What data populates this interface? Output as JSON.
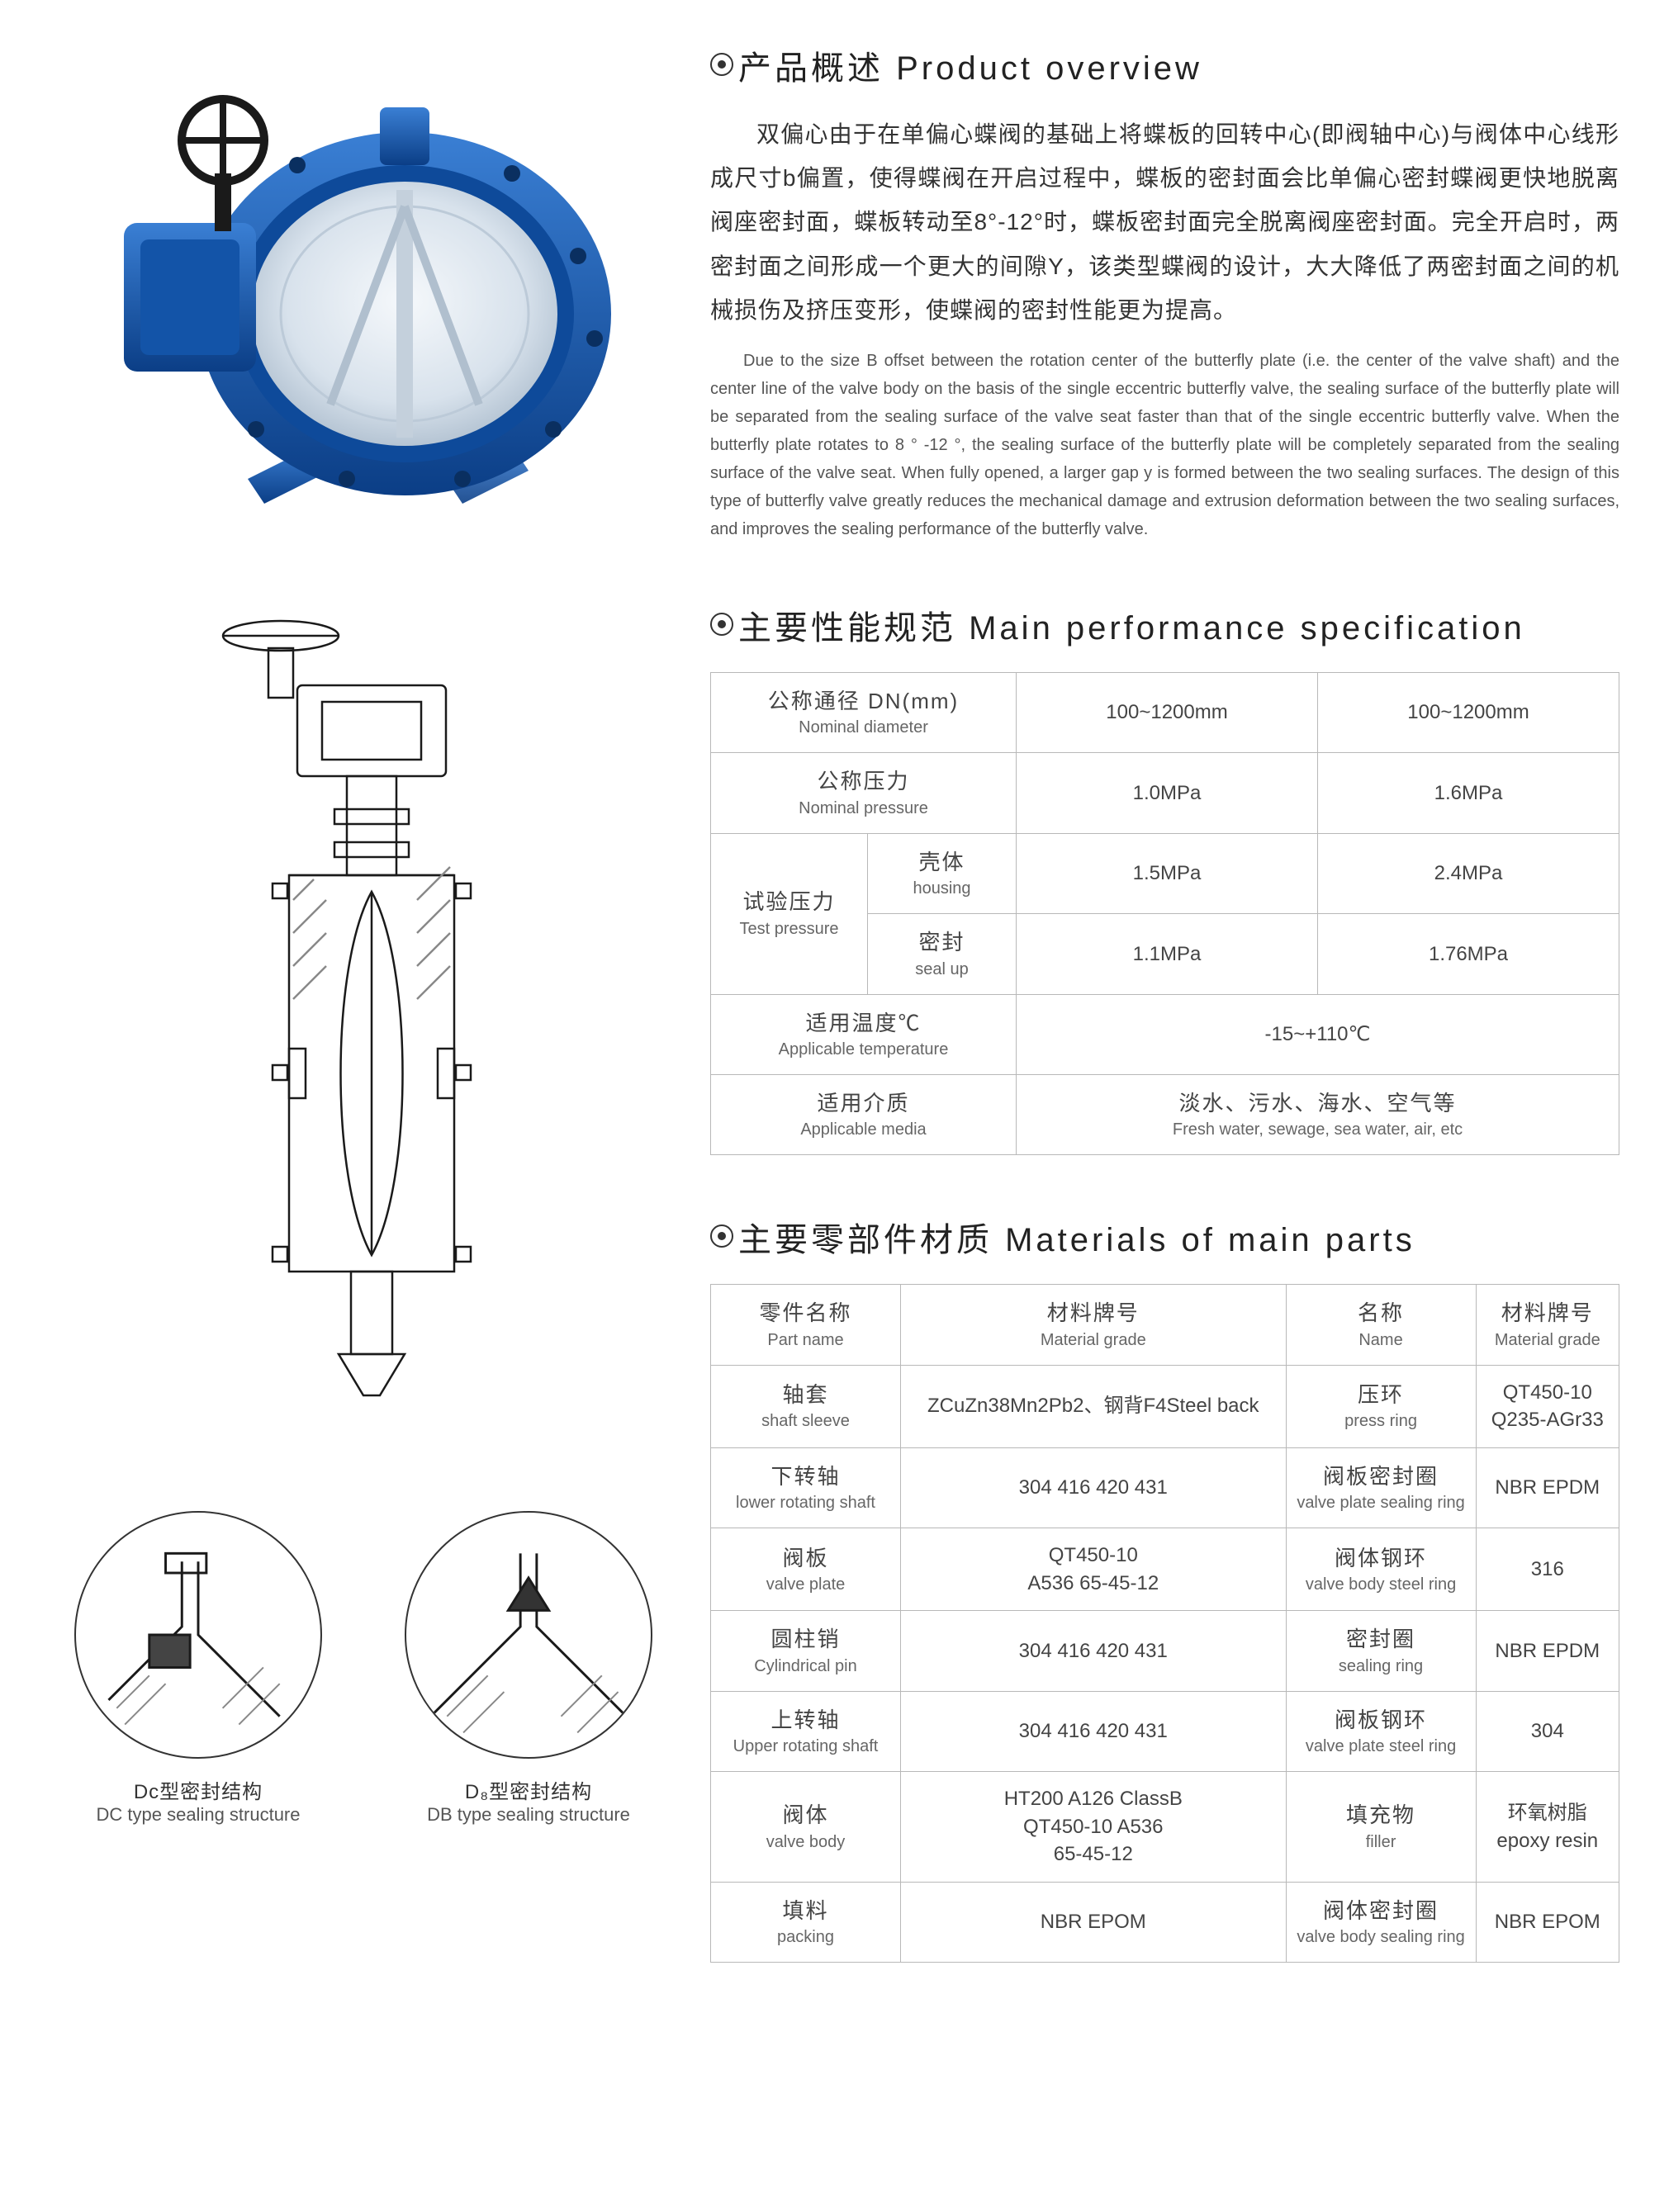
{
  "overview": {
    "title": "产品概述 Product overview",
    "para_cn": "双偏心由于在单偏心蝶阀的基础上将蝶板的回转中心(即阀轴中心)与阀体中心线形成尺寸b偏置，使得蝶阀在开启过程中，蝶板的密封面会比单偏心密封蝶阀更快地脱离阀座密封面，蝶板转动至8°-12°时，蝶板密封面完全脱离阀座密封面。完全开启时，两密封面之间形成一个更大的间隙Y，该类型蝶阀的设计，大大降低了两密封面之间的机械损伤及挤压变形，使蝶阀的密封性能更为提高。",
    "para_en": "Due to the size B offset between the rotation center of the butterfly plate (i.e. the center of the valve shaft) and the center line of the valve body on the basis of the single eccentric butterfly valve, the sealing surface of the butterfly plate will be separated from the sealing surface of the valve seat faster than that of the single eccentric butterfly valve. When the butterfly plate rotates to 8 ° -12 °, the sealing surface of the butterfly plate will be completely separated from the sealing surface of the valve seat. When fully opened, a larger gap y is formed between the two sealing surfaces. The design of this type of butterfly valve greatly reduces the mechanical damage and extrusion deformation between the two sealing surfaces, and improves the sealing performance of the butterfly valve."
  },
  "spec": {
    "title": "主要性能规范 Main performance specification",
    "rows": {
      "nominal_diameter": {
        "cn": "公称通径 DN(mm)",
        "en": "Nominal diameter",
        "v1": "100~1200mm",
        "v2": "100~1200mm"
      },
      "nominal_pressure": {
        "cn": "公称压力",
        "en": "Nominal pressure",
        "v1": "1.0MPa",
        "v2": "1.6MPa"
      },
      "test_pressure": {
        "cn": "试验压力",
        "en": "Test pressure"
      },
      "housing": {
        "cn": "壳体",
        "en": "housing",
        "v1": "1.5MPa",
        "v2": "2.4MPa"
      },
      "seal": {
        "cn": "密封",
        "en": "seal up",
        "v1": "1.1MPa",
        "v2": "1.76MPa"
      },
      "temp": {
        "cn": "适用温度℃",
        "en": "Applicable temperature",
        "v": "-15~+110℃"
      },
      "media": {
        "cn": "适用介质",
        "en": "Applicable media",
        "v_cn": "淡水、污水、海水、空气等",
        "v_en": "Fresh water, sewage, sea water, air, etc"
      }
    }
  },
  "materials": {
    "title": "主要零部件材质 Materials of main parts",
    "headers": {
      "part_name": {
        "cn": "零件名称",
        "en": "Part name"
      },
      "grade1": {
        "cn": "材料牌号",
        "en": "Material grade"
      },
      "name2": {
        "cn": "名称",
        "en": "Name"
      },
      "grade2": {
        "cn": "材料牌号",
        "en": "Material grade"
      }
    },
    "rows": [
      {
        "p_cn": "轴套",
        "p_en": "shaft sleeve",
        "g1": "ZCuZn38Mn2Pb2、钢背F4Steel back",
        "n_cn": "压环",
        "n_en": "press ring",
        "g2": "QT450-10\nQ235-AGr33"
      },
      {
        "p_cn": "下转轴",
        "p_en": "lower rotating shaft",
        "g1": "304 416 420 431",
        "n_cn": "阀板密封圈",
        "n_en": "valve plate sealing ring",
        "g2": "NBR EPDM"
      },
      {
        "p_cn": "阀板",
        "p_en": "valve plate",
        "g1": "QT450-10\nA536 65-45-12",
        "n_cn": "阀体钢环",
        "n_en": "valve body steel ring",
        "g2": "316"
      },
      {
        "p_cn": "圆柱销",
        "p_en": "Cylindrical pin",
        "g1": "304 416 420 431",
        "n_cn": "密封圈",
        "n_en": "sealing ring",
        "g2": "NBR EPDM"
      },
      {
        "p_cn": "上转轴",
        "p_en": "Upper rotating shaft",
        "g1": "304 416 420 431",
        "n_cn": "阀板钢环",
        "n_en": "valve plate steel ring",
        "g2": "304"
      },
      {
        "p_cn": "阀体",
        "p_en": "valve body",
        "g1": "HT200 A126 ClassB\nQT450-10 A536\n65-45-12",
        "n_cn": "填充物",
        "n_en": "filler",
        "g2": "环氧树脂\nepoxy resin"
      },
      {
        "p_cn": "填料",
        "p_en": "packing",
        "g1": "NBR EPOM",
        "n_cn": "阀体密封圈",
        "n_en": "valve body sealing ring",
        "g2": "NBR EPOM"
      }
    ]
  },
  "seals": {
    "dc": {
      "cn": "Dc型密封结构",
      "en": "DC type sealing structure"
    },
    "db": {
      "cn": "D₈型密封结构",
      "en": "DB type sealing structure"
    }
  },
  "colors": {
    "valve_blue": "#1b5fb5",
    "valve_light": "#e8eef4",
    "drawing_stroke": "#1a1a1a",
    "hatch": "#888888"
  }
}
